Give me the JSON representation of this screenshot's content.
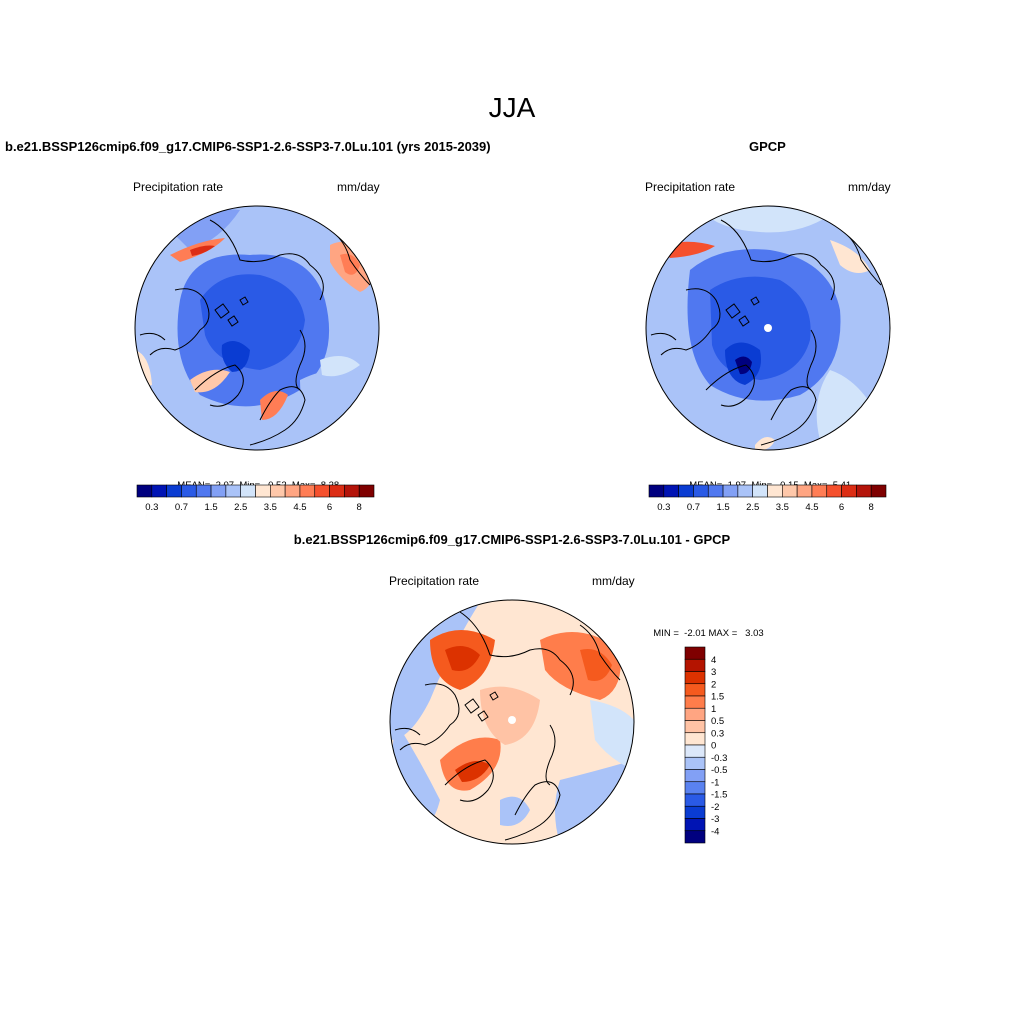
{
  "title": "JJA",
  "panels": [
    {
      "title": "b.e21.BSSP126cmip6.f09_g17.CMIP6-SSP1-2.6-SSP3-7.0Lu.101 (yrs 2015-2039)",
      "left_label": "Precipitation rate",
      "right_label": "mm/day",
      "stats": {
        "mean_label": "MEAN=",
        "mean": "2.07",
        "min_label": "Min=",
        "min": "0.52",
        "max_label": "Max=",
        "max": "8.28"
      }
    },
    {
      "title": "GPCP",
      "left_label": "Precipitation rate",
      "right_label": "mm/day",
      "stats": {
        "mean_label": "MEAN=",
        "mean": "1.97",
        "min_label": "Min=",
        "min": "0.15",
        "max_label": "Max=",
        "max": "5.41"
      }
    },
    {
      "title": "b.e21.BSSP126cmip6.f09_g17.CMIP6-SSP1-2.6-SSP3-7.0Lu.101 - GPCP",
      "left_label": "Precipitation rate",
      "right_label": "mm/day",
      "minmax": {
        "min_label": "MIN =",
        "min": "-2.01",
        "max_label": "MAX =",
        "max": "3.03"
      }
    }
  ],
  "abs_colorbar": {
    "colors": [
      "#00007f",
      "#0014b4",
      "#0a3cd2",
      "#2a5ae6",
      "#5078f0",
      "#82a0f5",
      "#aac3f8",
      "#d2e4fa",
      "#ffe6d2",
      "#ffc8aa",
      "#ffa582",
      "#ff7d55",
      "#f5502d",
      "#dc2d14",
      "#b4140a",
      "#7f0000"
    ],
    "tick_labels": [
      "0.3",
      "0.7",
      "1.5",
      "2.5",
      "3.5",
      "4.5",
      "6",
      "8"
    ]
  },
  "diff_colorbar": {
    "colors": [
      "#7f0000",
      "#b41400",
      "#dc3200",
      "#f55a1e",
      "#ff7d4b",
      "#ffa582",
      "#ffc3a5",
      "#ffe6d2",
      "#dce8fa",
      "#aac3f8",
      "#82a0f5",
      "#5a82f0",
      "#2a5ae6",
      "#0a3cd2",
      "#0014b4",
      "#00007f"
    ],
    "tick_labels": [
      "4",
      "3",
      "2",
      "1.5",
      "1",
      "0.5",
      "0.3",
      "0",
      "-0.3",
      "-0.5",
      "-1",
      "-1.5",
      "-2",
      "-3",
      "-4"
    ]
  }
}
